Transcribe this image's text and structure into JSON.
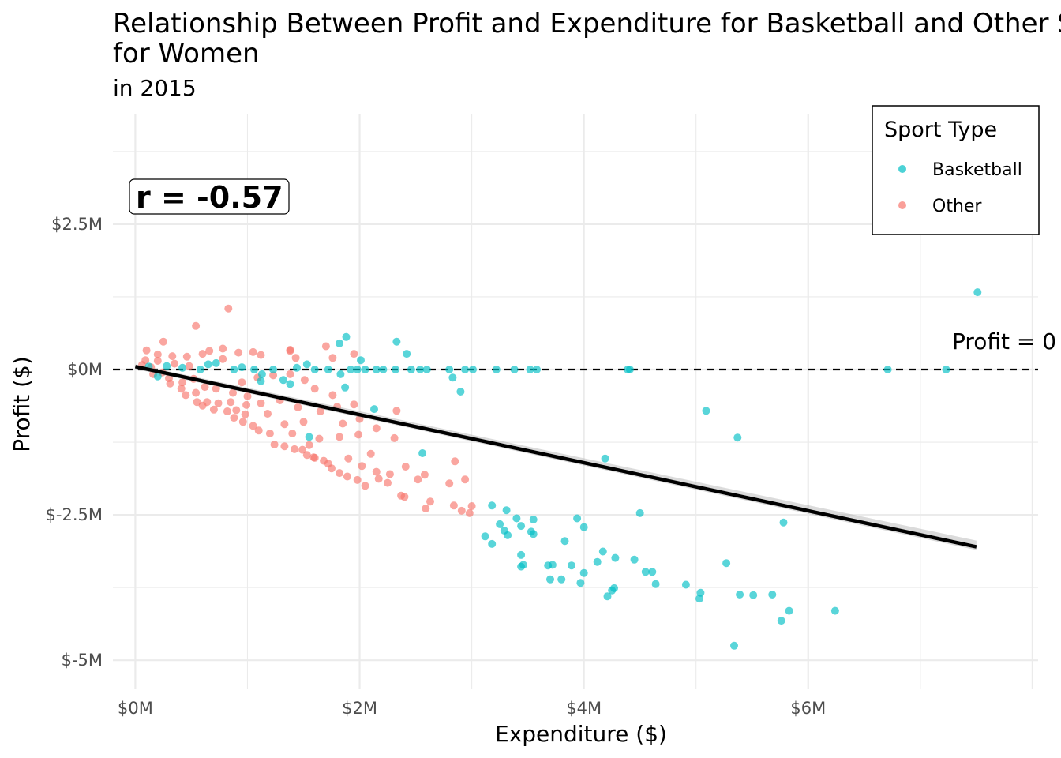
{
  "chart_data": {
    "type": "scatter",
    "title_lines": [
      "Relationship Between Profit and Expenditure for Basketball and Other Sports",
      "for Women"
    ],
    "subtitle": "in 2015",
    "xlabel": "Expenditure ($)",
    "ylabel": "Profit ($)",
    "xlim": [
      -200000,
      8050000
    ],
    "ylim": [
      -5500000,
      4400000
    ],
    "x_ticks": [
      0,
      2000000,
      4000000,
      6000000
    ],
    "x_tick_labels": [
      "$0M",
      "$2M",
      "$4M",
      "$6M"
    ],
    "y_ticks": [
      2500000,
      0,
      -2500000,
      -5000000
    ],
    "y_tick_labels": [
      "$2.5M",
      "$0M",
      "$-2.5M",
      "$-5M"
    ],
    "grid": true,
    "legend": {
      "title": "Sport Type",
      "position": "top-right",
      "entries": [
        {
          "label": "Basketball",
          "color": "#00BFC4"
        },
        {
          "label": "Other",
          "color": "#F8766D"
        }
      ]
    },
    "annotations": {
      "correlation": "r = -0.57",
      "reference_line_label": "Profit = 0",
      "reference_line_y": 0
    },
    "trend_line": {
      "x": [
        0,
        7500000
      ],
      "y": [
        50000,
        -3050000
      ]
    },
    "series": [
      {
        "name": "Basketball",
        "color": "#00BFC4",
        "points": [
          [
            7510000,
            1330000
          ],
          [
            2330000,
            480000
          ],
          [
            1880000,
            560000
          ],
          [
            1820000,
            450000
          ],
          [
            2420000,
            270000
          ],
          [
            2010000,
            160000
          ],
          [
            1870000,
            -310000
          ],
          [
            2900000,
            -380000
          ],
          [
            5090000,
            -710000
          ],
          [
            5370000,
            -1170000
          ],
          [
            2130000,
            -680000
          ],
          [
            1550000,
            -1160000
          ],
          [
            4190000,
            -1530000
          ],
          [
            2560000,
            -1440000
          ],
          [
            4500000,
            -2470000
          ],
          [
            5780000,
            -2630000
          ],
          [
            3180000,
            -2340000
          ],
          [
            3310000,
            -2420000
          ],
          [
            3940000,
            -2560000
          ],
          [
            3550000,
            -2580000
          ],
          [
            3400000,
            -2560000
          ],
          [
            4000000,
            -2710000
          ],
          [
            3440000,
            -2690000
          ],
          [
            3250000,
            -2660000
          ],
          [
            3290000,
            -2770000
          ],
          [
            3320000,
            -2850000
          ],
          [
            3120000,
            -2870000
          ],
          [
            3180000,
            -3000000
          ],
          [
            3530000,
            -2790000
          ],
          [
            3550000,
            -2830000
          ],
          [
            3830000,
            -2950000
          ],
          [
            4170000,
            -3130000
          ],
          [
            3440000,
            -3190000
          ],
          [
            3460000,
            -3360000
          ],
          [
            3680000,
            -3370000
          ],
          [
            3720000,
            -3360000
          ],
          [
            3440000,
            -3390000
          ],
          [
            3890000,
            -3370000
          ],
          [
            4120000,
            -3310000
          ],
          [
            4280000,
            -3240000
          ],
          [
            4450000,
            -3270000
          ],
          [
            4550000,
            -3480000
          ],
          [
            4610000,
            -3480000
          ],
          [
            4000000,
            -3500000
          ],
          [
            5270000,
            -3330000
          ],
          [
            3700000,
            -3610000
          ],
          [
            3800000,
            -3610000
          ],
          [
            3970000,
            -3670000
          ],
          [
            4640000,
            -3690000
          ],
          [
            4910000,
            -3700000
          ],
          [
            4270000,
            -3760000
          ],
          [
            4250000,
            -3800000
          ],
          [
            4210000,
            -3900000
          ],
          [
            5040000,
            -3840000
          ],
          [
            5030000,
            -3940000
          ],
          [
            5390000,
            -3870000
          ],
          [
            5510000,
            -3880000
          ],
          [
            5680000,
            -3870000
          ],
          [
            5830000,
            -4150000
          ],
          [
            5760000,
            -4320000
          ],
          [
            6240000,
            -4150000
          ],
          [
            5340000,
            -4750000
          ],
          [
            7230000,
            0
          ],
          [
            6710000,
            0
          ],
          [
            4410000,
            0
          ],
          [
            4390000,
            0
          ],
          [
            3580000,
            0
          ],
          [
            3520000,
            0
          ],
          [
            3380000,
            0
          ],
          [
            3220000,
            0
          ],
          [
            3010000,
            0
          ],
          [
            2940000,
            0
          ],
          [
            2830000,
            -140000
          ],
          [
            2800000,
            0
          ],
          [
            2600000,
            0
          ],
          [
            2540000,
            0
          ],
          [
            2460000,
            0
          ],
          [
            2320000,
            0
          ],
          [
            2210000,
            0
          ],
          [
            2150000,
            0
          ],
          [
            2050000,
            0
          ],
          [
            1980000,
            0
          ],
          [
            1920000,
            0
          ],
          [
            1830000,
            -80000
          ],
          [
            1720000,
            0
          ],
          [
            1600000,
            0
          ],
          [
            1530000,
            90000
          ],
          [
            1440000,
            30000
          ],
          [
            1380000,
            -250000
          ],
          [
            1320000,
            -180000
          ],
          [
            1230000,
            0
          ],
          [
            1130000,
            -80000
          ],
          [
            1060000,
            0
          ],
          [
            950000,
            40000
          ],
          [
            880000,
            0
          ],
          [
            720000,
            110000
          ],
          [
            650000,
            90000
          ],
          [
            580000,
            0
          ],
          [
            420000,
            30000
          ],
          [
            280000,
            60000
          ],
          [
            200000,
            -120000
          ],
          [
            120000,
            50000
          ],
          [
            1120000,
            -200000
          ]
        ]
      },
      {
        "name": "Other",
        "color": "#F8766D",
        "points": [
          [
            830000,
            1050000
          ],
          [
            540000,
            750000
          ],
          [
            250000,
            480000
          ],
          [
            1380000,
            320000
          ],
          [
            780000,
            360000
          ],
          [
            660000,
            320000
          ],
          [
            920000,
            290000
          ],
          [
            1050000,
            300000
          ],
          [
            1120000,
            250000
          ],
          [
            460000,
            220000
          ],
          [
            100000,
            330000
          ],
          [
            330000,
            230000
          ],
          [
            1950000,
            270000
          ],
          [
            1760000,
            200000
          ],
          [
            1430000,
            200000
          ],
          [
            200000,
            150000
          ],
          [
            350000,
            100000
          ],
          [
            60000,
            80000
          ],
          [
            140000,
            40000
          ],
          [
            240000,
            -50000
          ],
          [
            300000,
            -150000
          ],
          [
            420000,
            -220000
          ],
          [
            450000,
            -440000
          ],
          [
            550000,
            -560000
          ],
          [
            600000,
            -620000
          ],
          [
            700000,
            -690000
          ],
          [
            820000,
            -720000
          ],
          [
            880000,
            -830000
          ],
          [
            960000,
            -900000
          ],
          [
            1050000,
            -970000
          ],
          [
            1100000,
            -1050000
          ],
          [
            1200000,
            -1100000
          ],
          [
            1240000,
            -1290000
          ],
          [
            1330000,
            -1320000
          ],
          [
            1420000,
            -1370000
          ],
          [
            1530000,
            -1470000
          ],
          [
            1600000,
            -1520000
          ],
          [
            1680000,
            -1570000
          ],
          [
            1750000,
            -1700000
          ],
          [
            1820000,
            -1780000
          ],
          [
            1890000,
            -1840000
          ],
          [
            1980000,
            -1900000
          ],
          [
            2050000,
            -2000000
          ],
          [
            2170000,
            -1880000
          ],
          [
            2250000,
            -1950000
          ],
          [
            2370000,
            -2170000
          ],
          [
            2400000,
            -2190000
          ],
          [
            2520000,
            -1890000
          ],
          [
            2580000,
            -1810000
          ],
          [
            2630000,
            -2270000
          ],
          [
            2590000,
            -2390000
          ],
          [
            2840000,
            -2340000
          ],
          [
            2910000,
            -2430000
          ],
          [
            3000000,
            -2350000
          ],
          [
            2980000,
            -2470000
          ],
          [
            2800000,
            -1960000
          ],
          [
            2940000,
            -1890000
          ],
          [
            2850000,
            -1580000
          ],
          [
            2410000,
            -1670000
          ],
          [
            2270000,
            -1800000
          ],
          [
            2150000,
            -1760000
          ],
          [
            2020000,
            -1660000
          ],
          [
            1900000,
            -1530000
          ],
          [
            1720000,
            -1620000
          ],
          [
            1590000,
            -1510000
          ],
          [
            1490000,
            -1380000
          ],
          [
            1640000,
            -1190000
          ],
          [
            1820000,
            -1160000
          ],
          [
            1990000,
            -1120000
          ],
          [
            2150000,
            -1010000
          ],
          [
            2310000,
            -1180000
          ],
          [
            2330000,
            -710000
          ],
          [
            2000000,
            -850000
          ],
          [
            1950000,
            -600000
          ],
          [
            1800000,
            -640000
          ],
          [
            1760000,
            -440000
          ],
          [
            1600000,
            -330000
          ],
          [
            1510000,
            -180000
          ],
          [
            1380000,
            -80000
          ],
          [
            1230000,
            -100000
          ],
          [
            1090000,
            -140000
          ],
          [
            950000,
            -220000
          ],
          [
            870000,
            -400000
          ],
          [
            720000,
            -330000
          ],
          [
            620000,
            -300000
          ],
          [
            520000,
            -160000
          ],
          [
            480000,
            60000
          ],
          [
            780000,
            180000
          ],
          [
            1330000,
            -940000
          ],
          [
            1180000,
            -760000
          ],
          [
            990000,
            -610000
          ],
          [
            850000,
            -560000
          ],
          [
            740000,
            -580000
          ],
          [
            640000,
            -560000
          ],
          [
            540000,
            -400000
          ],
          [
            410000,
            -330000
          ],
          [
            310000,
            -240000
          ],
          [
            160000,
            -80000
          ],
          [
            90000,
            160000
          ],
          [
            1290000,
            -530000
          ],
          [
            1450000,
            -650000
          ],
          [
            1650000,
            -720000
          ],
          [
            1850000,
            -930000
          ],
          [
            1120000,
            -580000
          ],
          [
            1000000,
            -460000
          ],
          [
            900000,
            -700000
          ],
          [
            980000,
            -770000
          ],
          [
            1400000,
            -1100000
          ],
          [
            1550000,
            -1300000
          ],
          [
            2100000,
            -1450000
          ],
          [
            1500000,
            -900000
          ],
          [
            1700000,
            400000
          ],
          [
            1380000,
            340000
          ],
          [
            600000,
            270000
          ],
          [
            200000,
            260000
          ]
        ]
      }
    ]
  }
}
